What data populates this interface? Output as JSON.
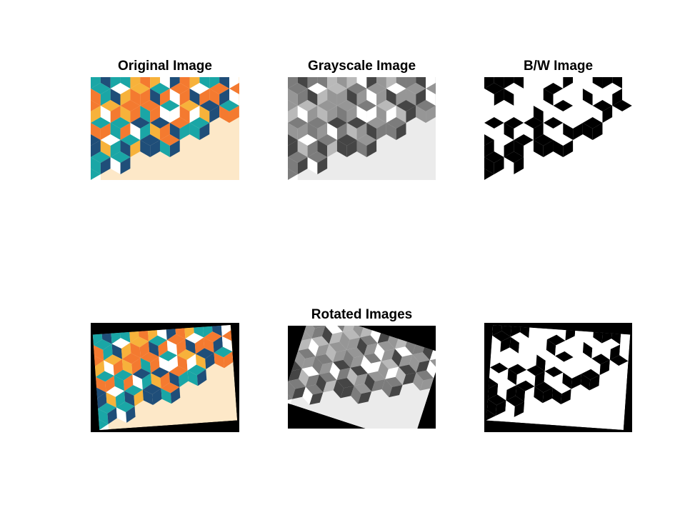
{
  "figure": {
    "titles": {
      "original": "Original Image",
      "grayscale": "Grayscale Image",
      "bw": "B/W Image",
      "rotated": "Rotated Images"
    }
  },
  "palette": {
    "navy": "#1f4e79",
    "teal": "#1aa6a6",
    "orange": "#f47a30",
    "gold": "#f7b23b",
    "cream": "#fde8c8",
    "white": "#ffffff",
    "black": "#000000"
  },
  "rotation": {
    "angle_color": -4,
    "angle_gray": 18,
    "angle_bw": 4
  }
}
